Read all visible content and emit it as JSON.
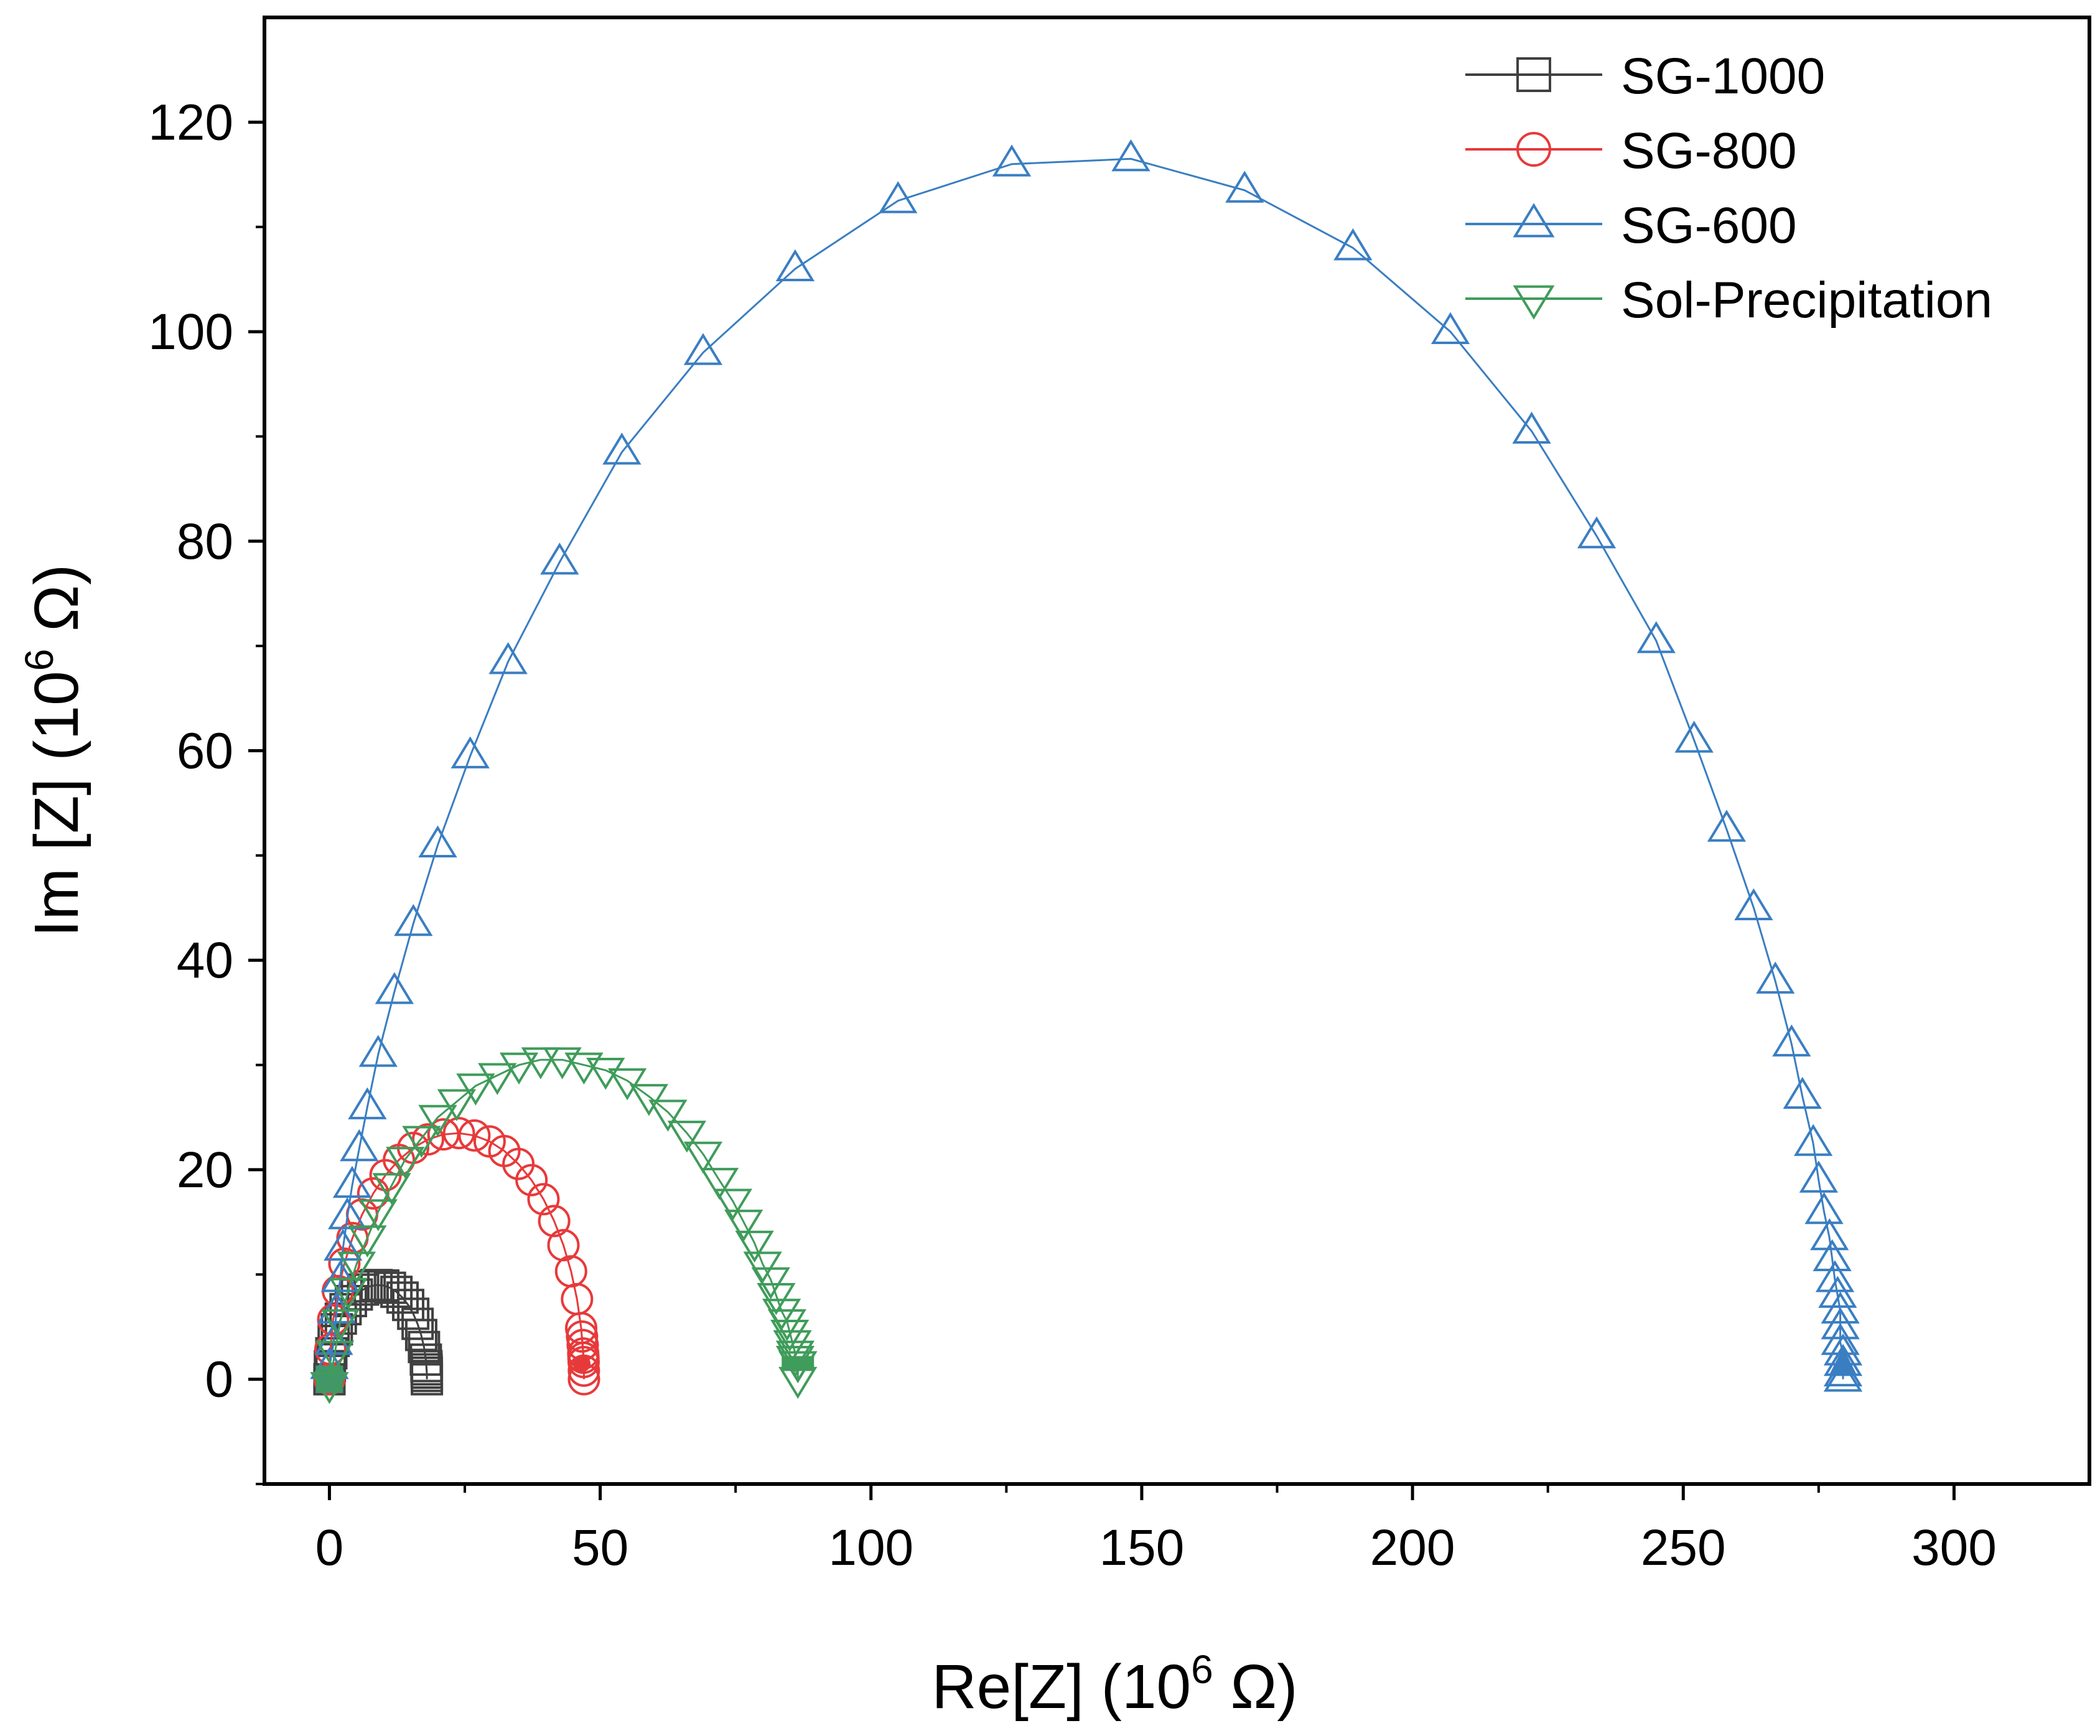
{
  "chart_data": {
    "type": "scatter",
    "title": "",
    "xlabel": "Re[Z] (10",
    "xlabel_sup": "6",
    "xlabel_unit": " Ω)",
    "ylabel": "Im [Z] (10",
    "ylabel_sup": "6",
    "ylabel_unit": " Ω)",
    "xlim": [
      -12,
      325
    ],
    "ylim": [
      -10,
      130
    ],
    "x_ticks": [
      0,
      50,
      100,
      150,
      200,
      250,
      300
    ],
    "x_tick_labels": [
      "0",
      "50",
      "100",
      "150",
      "200",
      "250",
      "300"
    ],
    "y_ticks": [
      0,
      20,
      40,
      60,
      80,
      100,
      120
    ],
    "y_tick_labels": [
      "0",
      "20",
      "40",
      "60",
      "80",
      "100",
      "120"
    ],
    "grid": false,
    "legend_position": "top-right",
    "series": [
      {
        "name": "SG-1000",
        "marker": "square",
        "color": "#404040",
        "fill_color": "#404040",
        "center": 9,
        "radius": 9,
        "angle_step": 8,
        "dense_end": 4,
        "extra_point": [
          18,
          0
        ]
      },
      {
        "name": "SG-800",
        "marker": "circle",
        "color": "#e8393a",
        "fill_color": "#e8393a",
        "center": 23.5,
        "radius": 23.5,
        "angle_step": 7,
        "dense_end": 5,
        "extra_point": [
          47,
          0
        ]
      },
      {
        "name": "SG-600",
        "marker": "triangle-up",
        "color": "#3a7ec2",
        "fill_color": "#3a7ec2",
        "peak_point": [
          145,
          116.5
        ],
        "dense_end": 8,
        "values": [
          [
            0,
            1.2
          ],
          [
            0.8,
            3.5
          ],
          [
            1.3,
            6.5
          ],
          [
            2.0,
            9.5
          ],
          [
            2.5,
            12.5
          ],
          [
            3.3,
            15.5
          ],
          [
            4.2,
            18.5
          ],
          [
            5.5,
            22
          ],
          [
            7,
            26
          ],
          [
            9,
            31
          ],
          [
            12,
            37
          ],
          [
            15.5,
            43.5
          ],
          [
            20,
            51
          ],
          [
            26,
            59.5
          ],
          [
            33,
            68.5
          ],
          [
            42.5,
            78
          ],
          [
            54,
            88.5
          ],
          [
            69,
            98
          ],
          [
            86,
            106
          ],
          [
            105,
            112.5
          ],
          [
            126,
            116
          ],
          [
            148,
            116.5
          ],
          [
            169,
            113.5
          ],
          [
            189,
            108
          ],
          [
            207,
            100
          ],
          [
            222,
            90.5
          ],
          [
            234,
            80.5
          ],
          [
            245,
            70.5
          ],
          [
            252,
            61
          ],
          [
            258,
            52.5
          ],
          [
            263,
            45
          ],
          [
            267,
            38
          ],
          [
            270,
            32
          ],
          [
            272,
            27
          ],
          [
            274,
            22.5
          ],
          [
            275,
            19
          ],
          [
            276,
            16
          ],
          [
            277,
            13.5
          ],
          [
            277.5,
            11.5
          ],
          [
            278,
            9.5
          ],
          [
            278.5,
            8
          ],
          [
            279,
            6.5
          ],
          [
            279,
            5
          ],
          [
            279,
            3.5
          ],
          [
            279.5,
            2.5
          ],
          [
            279.5,
            1.5
          ],
          [
            279.5,
            0.5
          ],
          [
            279.5,
            0
          ]
        ]
      },
      {
        "name": "Sol-Precipitation",
        "marker": "triangle-down",
        "color": "#3f9c5a",
        "fill_color": "#3f9c5a",
        "values": [
          [
            0,
            -0.5
          ],
          [
            1,
            2.5
          ],
          [
            2,
            5.5
          ],
          [
            3.5,
            8.5
          ],
          [
            5,
            11
          ],
          [
            7,
            13.5
          ],
          [
            9,
            16
          ],
          [
            11.5,
            18.5
          ],
          [
            14,
            21
          ],
          [
            17,
            23
          ],
          [
            20,
            25
          ],
          [
            23.5,
            26.5
          ],
          [
            27,
            28
          ],
          [
            31,
            29
          ],
          [
            35,
            30
          ],
          [
            39,
            30.5
          ],
          [
            43,
            30.5
          ],
          [
            47,
            30
          ],
          [
            51,
            29.5
          ],
          [
            55,
            28.5
          ],
          [
            59,
            27
          ],
          [
            62.5,
            25.5
          ],
          [
            66,
            23.5
          ],
          [
            69,
            21.5
          ],
          [
            72,
            19
          ],
          [
            74.5,
            17
          ],
          [
            76.5,
            15
          ],
          [
            78.5,
            13
          ],
          [
            80,
            11
          ],
          [
            81.5,
            9.5
          ],
          [
            82.5,
            8
          ],
          [
            83.5,
            6.5
          ],
          [
            84.5,
            5.5
          ],
          [
            85,
            4.5
          ],
          [
            85.5,
            3.5
          ],
          [
            86,
            2.5
          ],
          [
            86,
            2
          ],
          [
            86.5,
            1.5
          ],
          [
            86.5,
            1.5
          ],
          [
            86.5,
            1.5
          ],
          [
            86.5,
            1.5
          ],
          [
            86.5,
            0
          ]
        ]
      }
    ]
  }
}
